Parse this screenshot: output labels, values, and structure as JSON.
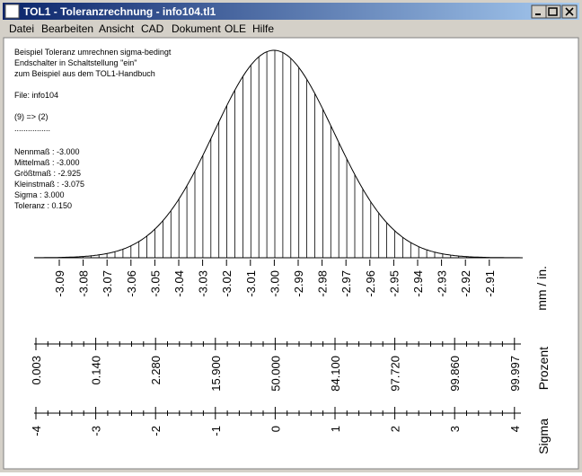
{
  "window": {
    "title": "TOL1 - Toleranzrechnung  -  info104.tl1"
  },
  "menu": [
    "Datei",
    "Bearbeiten",
    "Ansicht",
    "CAD",
    "Dokument",
    "OLE",
    "Hilfe"
  ],
  "info": [
    "Beispiel Toleranz umrechnen sigma-bedingt",
    "Endschalter in Schaltstellung \"ein\"",
    "zum Beispiel aus dem TOL1-Handbuch",
    "File: info104",
    "(9) => (2)",
    "................",
    "Nennmaß : -3.000",
    "Mittelmaß : -3.000",
    "Größtmaß : -2.925",
    "Kleinstmaß : -3.075",
    "Sigma : 3.000",
    "Toleranz : 0.150"
  ],
  "scales": {
    "mm": {
      "label": "mm / in.",
      "ticks": [
        "-3.09",
        "-3.08",
        "-3.07",
        "-3.06",
        "-3.05",
        "-3.04",
        "-3.03",
        "-3.02",
        "-3.01",
        "-3.00",
        "-2.99",
        "-2.98",
        "-2.97",
        "-2.96",
        "-2.95",
        "-2.94",
        "-2.93",
        "-2.92",
        "-2.91"
      ]
    },
    "percent": {
      "label": "Prozent",
      "ticks": [
        "0.003",
        "0.140",
        "2.280",
        "15.900",
        "50.000",
        "84.100",
        "97.720",
        "99.860",
        "99.997"
      ]
    },
    "sigma": {
      "label": "Sigma",
      "ticks": [
        "-4",
        "-3",
        "-2",
        "-1",
        "0",
        "1",
        "2",
        "3",
        "4"
      ]
    }
  }
}
